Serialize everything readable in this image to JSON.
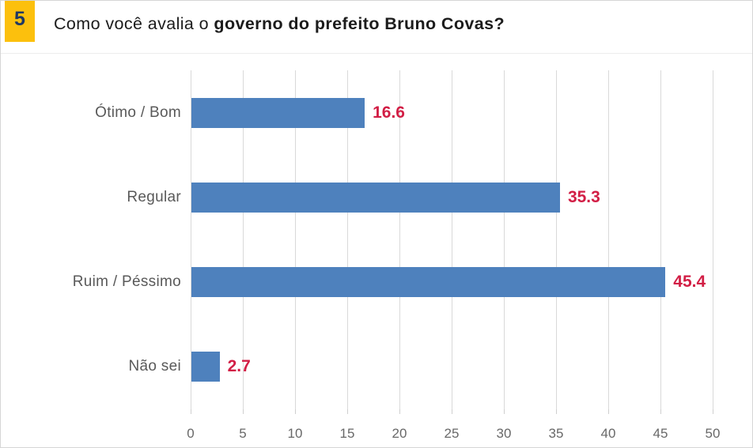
{
  "page": {
    "badge_number": "5",
    "title_prefix": "Como você avalia o ",
    "title_bold": "governo do prefeito Bruno Covas?"
  },
  "colors": {
    "badge_bg": "#FCC00D",
    "badge_text": "#1F3864",
    "bar": "#4E81BD",
    "value_label": "#D21E45",
    "gridline": "#D9D9D9",
    "axis_tick": "#CFCFCF",
    "category_text": "#595959",
    "tick_text": "#686868"
  },
  "chart_data": {
    "type": "bar",
    "orientation": "horizontal",
    "title": "Como você avalia o governo do prefeito Bruno Covas?",
    "categories": [
      "Ótimo / Bom",
      "Regular",
      "Ruim / Péssimo",
      "Não sei"
    ],
    "values": [
      16.6,
      35.3,
      45.4,
      2.7
    ],
    "value_labels": [
      "16.6",
      "35.3",
      "45.4",
      "2.7"
    ],
    "xlabel": "",
    "ylabel": "",
    "xlim": [
      0,
      50
    ],
    "x_ticks": [
      0,
      5,
      10,
      15,
      20,
      25,
      30,
      35,
      40,
      45,
      50
    ],
    "grid": true,
    "legend": false
  }
}
